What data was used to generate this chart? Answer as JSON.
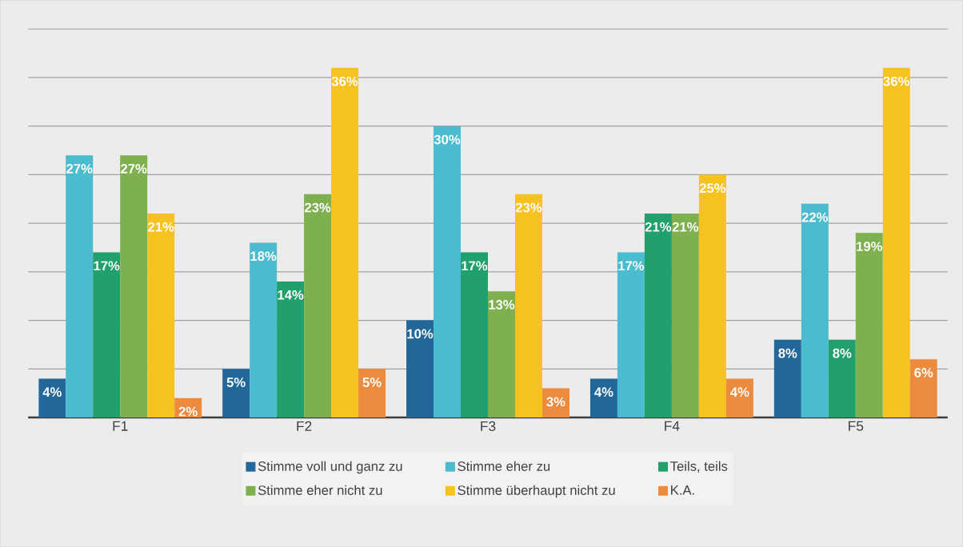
{
  "chart_data": {
    "type": "bar",
    "categories": [
      "F1",
      "F2",
      "F3",
      "F4",
      "F5"
    ],
    "series": [
      {
        "name": "Stimme voll und ganz zu",
        "color": "#22679a",
        "values": [
          4,
          5,
          10,
          4,
          8
        ],
        "value_labels": [
          "4%",
          "5%",
          "10%",
          "4%",
          "8%"
        ]
      },
      {
        "name": "Stimme eher zu",
        "color": "#4bbcd0",
        "values": [
          27,
          18,
          30,
          17,
          22
        ],
        "value_labels": [
          "27%",
          "18%",
          "30%",
          "17%",
          "22%"
        ]
      },
      {
        "name": "Teils, teils",
        "color": "#21a06b",
        "values": [
          17,
          14,
          17,
          21,
          8
        ],
        "value_labels": [
          "17%",
          "14%",
          "17%",
          "21%",
          "8%"
        ]
      },
      {
        "name": "Stimme eher nicht zu",
        "color": "#7fb04f",
        "values": [
          27,
          23,
          13,
          21,
          19
        ],
        "value_labels": [
          "27%",
          "23%",
          "13%",
          "21%",
          "19%"
        ]
      },
      {
        "name": "Stimme überhaupt nicht zu",
        "color": "#f6c21f",
        "values": [
          21,
          36,
          23,
          25,
          36
        ],
        "value_labels": [
          "21%",
          "36%",
          "23%",
          "25%",
          "36%"
        ]
      },
      {
        "name": "K.A.",
        "color": "#ec8a3e",
        "values": [
          2,
          5,
          3,
          4,
          6
        ],
        "value_labels": [
          "2%",
          "5%",
          "3%",
          "4%",
          "6%"
        ]
      }
    ],
    "ylim": [
      0,
      40
    ],
    "tick_labels": "x",
    "grid": "y",
    "legend": "bottom"
  }
}
